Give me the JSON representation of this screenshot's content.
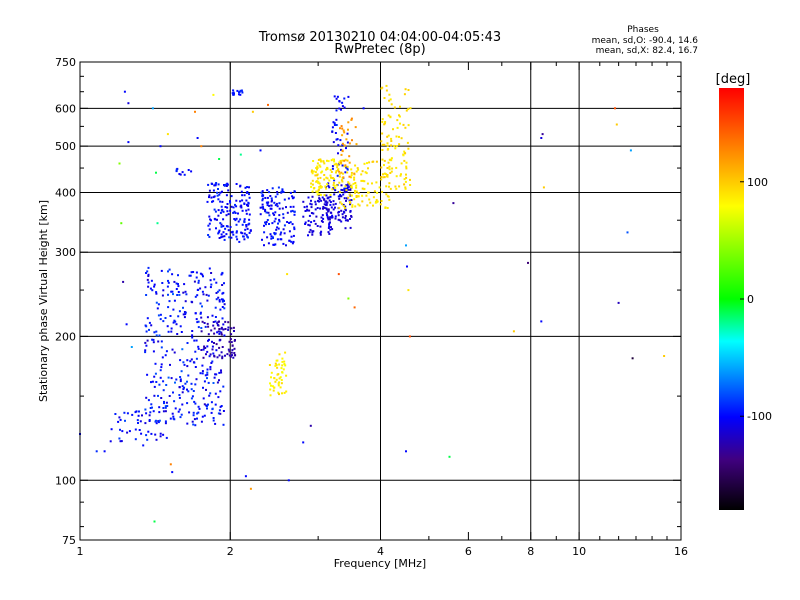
{
  "chart_data": {
    "type": "scatter",
    "title": "Tromsø 20130210 04:04:00-04:05:43",
    "subtitle": "RwPretec (8p)",
    "xlabel": "Frequency [MHz]",
    "ylabel": "Stationary phase Virtual Height [km]",
    "x_scale": "log",
    "y_scale": "log",
    "xlim": [
      1,
      16
    ],
    "ylim": [
      75,
      750
    ],
    "x_ticks": [
      1,
      2,
      4,
      6,
      8,
      10,
      16
    ],
    "x_tick_labels": [
      "1",
      "2",
      "4",
      "6",
      "8",
      "10",
      "16"
    ],
    "x_grid": [
      2,
      4,
      8,
      10
    ],
    "y_ticks": [
      75,
      100,
      200,
      300,
      400,
      500,
      600,
      750
    ],
    "y_tick_labels": [
      "75",
      "100",
      "200",
      "300",
      "400",
      "500",
      "600",
      "750"
    ],
    "y_grid": [
      100,
      200,
      300,
      400,
      500,
      600
    ],
    "grid": true,
    "stats_title": "Phases",
    "stats_lines": [
      "mean, sd,O: -90.4, 14.6",
      "mean, sd,X:  82.4, 16.7"
    ],
    "colorbar": {
      "label": "[deg]",
      "range": [
        -180,
        180
      ],
      "ticks": [
        100,
        0,
        -100
      ],
      "tick_labels": [
        "100",
        "0",
        "-100"
      ]
    },
    "clusters": [
      {
        "x": [
          1.12,
          1.5
        ],
        "y": [
          118,
          140
        ],
        "n": 45,
        "phase": -100,
        "sd": 15
      },
      {
        "x": [
          1.35,
          1.95
        ],
        "y": [
          130,
          280
        ],
        "n": 380,
        "phase": -98,
        "sd": 18
      },
      {
        "x": [
          1.75,
          2.05
        ],
        "y": [
          180,
          215
        ],
        "n": 70,
        "phase": -125,
        "sd": 10
      },
      {
        "x": [
          1.55,
          1.68
        ],
        "y": [
          430,
          450
        ],
        "n": 10,
        "phase": -100,
        "sd": 10
      },
      {
        "x": [
          1.8,
          2.2
        ],
        "y": [
          315,
          420
        ],
        "n": 170,
        "phase": -100,
        "sd": 12
      },
      {
        "x": [
          2.3,
          2.7
        ],
        "y": [
          310,
          410
        ],
        "n": 130,
        "phase": -100,
        "sd": 12
      },
      {
        "x": [
          2.0,
          2.12
        ],
        "y": [
          640,
          655
        ],
        "n": 14,
        "phase": -95,
        "sd": 8
      },
      {
        "x": [
          2.4,
          2.6
        ],
        "y": [
          150,
          185
        ],
        "n": 50,
        "phase": 85,
        "sd": 10
      },
      {
        "x": [
          2.8,
          3.2
        ],
        "y": [
          325,
          395
        ],
        "n": 85,
        "phase": -110,
        "sd": 12
      },
      {
        "x": [
          3.1,
          3.5
        ],
        "y": [
          335,
          420
        ],
        "n": 100,
        "phase": -112,
        "sd": 12
      },
      {
        "x": [
          3.2,
          3.45
        ],
        "y": [
          400,
          640
        ],
        "n": 50,
        "phase": -100,
        "sd": 14
      },
      {
        "x": [
          2.9,
          3.3
        ],
        "y": [
          395,
          470
        ],
        "n": 95,
        "phase": 88,
        "sd": 10
      },
      {
        "x": [
          3.3,
          4.2
        ],
        "y": [
          370,
          470
        ],
        "n": 130,
        "phase": 90,
        "sd": 10
      },
      {
        "x": [
          4.0,
          4.6
        ],
        "y": [
          405,
          670
        ],
        "n": 95,
        "phase": 92,
        "sd": 10
      },
      {
        "x": [
          3.3,
          3.6
        ],
        "y": [
          430,
          580
        ],
        "n": 30,
        "phase": 120,
        "sd": 12
      }
    ],
    "sparse_points": [
      {
        "x": 1.0,
        "y": 125,
        "phase": -100
      },
      {
        "x": 1.08,
        "y": 115,
        "phase": -90
      },
      {
        "x": 1.12,
        "y": 115,
        "phase": -100
      },
      {
        "x": 1.23,
        "y": 650,
        "phase": -100
      },
      {
        "x": 1.25,
        "y": 615,
        "phase": -110
      },
      {
        "x": 1.25,
        "y": 510,
        "phase": -100
      },
      {
        "x": 1.22,
        "y": 260,
        "phase": -125
      },
      {
        "x": 1.21,
        "y": 345,
        "phase": 30
      },
      {
        "x": 1.2,
        "y": 460,
        "phase": 40
      },
      {
        "x": 1.24,
        "y": 212,
        "phase": -100
      },
      {
        "x": 1.27,
        "y": 190,
        "phase": -60
      },
      {
        "x": 1.4,
        "y": 600,
        "phase": -60
      },
      {
        "x": 1.42,
        "y": 440,
        "phase": -10
      },
      {
        "x": 1.43,
        "y": 345,
        "phase": -20
      },
      {
        "x": 1.45,
        "y": 500,
        "phase": -100
      },
      {
        "x": 1.5,
        "y": 530,
        "phase": 90
      },
      {
        "x": 1.41,
        "y": 82,
        "phase": -10
      },
      {
        "x": 1.52,
        "y": 108,
        "phase": 130
      },
      {
        "x": 1.53,
        "y": 104,
        "phase": -100
      },
      {
        "x": 1.7,
        "y": 590,
        "phase": 130
      },
      {
        "x": 1.72,
        "y": 520,
        "phase": -100
      },
      {
        "x": 1.75,
        "y": 500,
        "phase": 130
      },
      {
        "x": 1.85,
        "y": 640,
        "phase": 80
      },
      {
        "x": 1.9,
        "y": 470,
        "phase": -10
      },
      {
        "x": 2.1,
        "y": 480,
        "phase": -20
      },
      {
        "x": 2.15,
        "y": 102,
        "phase": -100
      },
      {
        "x": 2.2,
        "y": 96,
        "phase": 120
      },
      {
        "x": 2.22,
        "y": 590,
        "phase": 100
      },
      {
        "x": 2.3,
        "y": 490,
        "phase": -100
      },
      {
        "x": 2.38,
        "y": 610,
        "phase": 140
      },
      {
        "x": 2.6,
        "y": 270,
        "phase": 90
      },
      {
        "x": 2.62,
        "y": 100,
        "phase": -100
      },
      {
        "x": 2.8,
        "y": 120,
        "phase": -100
      },
      {
        "x": 2.9,
        "y": 130,
        "phase": -125
      },
      {
        "x": 3.3,
        "y": 270,
        "phase": 150
      },
      {
        "x": 3.45,
        "y": 240,
        "phase": 40
      },
      {
        "x": 3.55,
        "y": 230,
        "phase": 140
      },
      {
        "x": 3.7,
        "y": 600,
        "phase": -100
      },
      {
        "x": 4.5,
        "y": 310,
        "phase": -60
      },
      {
        "x": 4.52,
        "y": 280,
        "phase": -100
      },
      {
        "x": 4.55,
        "y": 250,
        "phase": 90
      },
      {
        "x": 4.58,
        "y": 200,
        "phase": 150
      },
      {
        "x": 4.5,
        "y": 115,
        "phase": -100
      },
      {
        "x": 5.5,
        "y": 112,
        "phase": -10
      },
      {
        "x": 5.6,
        "y": 380,
        "phase": -130
      },
      {
        "x": 7.4,
        "y": 205,
        "phase": 100
      },
      {
        "x": 7.9,
        "y": 285,
        "phase": -140
      },
      {
        "x": 8.4,
        "y": 215,
        "phase": -100
      },
      {
        "x": 8.4,
        "y": 520,
        "phase": -110
      },
      {
        "x": 8.45,
        "y": 530,
        "phase": -130
      },
      {
        "x": 8.5,
        "y": 410,
        "phase": 100
      },
      {
        "x": 11.8,
        "y": 600,
        "phase": 150
      },
      {
        "x": 11.9,
        "y": 555,
        "phase": 100
      },
      {
        "x": 12.0,
        "y": 235,
        "phase": -120
      },
      {
        "x": 12.5,
        "y": 330,
        "phase": -80
      },
      {
        "x": 12.7,
        "y": 490,
        "phase": -60
      },
      {
        "x": 12.8,
        "y": 180,
        "phase": -160
      },
      {
        "x": 14.8,
        "y": 182,
        "phase": 100
      }
    ]
  }
}
